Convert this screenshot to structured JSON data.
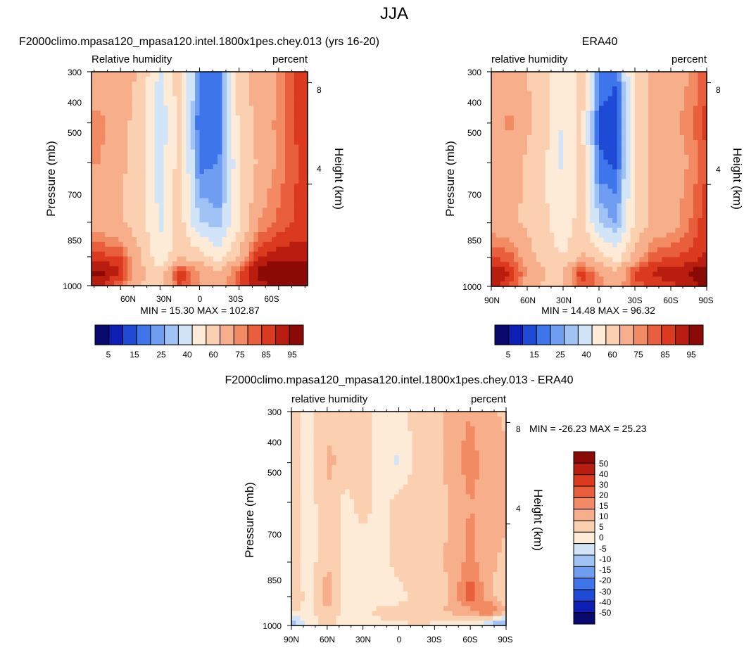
{
  "figure": {
    "title": "JJA",
    "colors": {
      "full_scale": [
        "#08086e",
        "#0c1eb4",
        "#1f4ad6",
        "#3f75ea",
        "#6e9df2",
        "#a1c2f5",
        "#d2e4f8",
        "#fdebd7",
        "#fbd0b0",
        "#f7ae8a",
        "#f28a63",
        "#e95f3d",
        "#dc3a1e",
        "#b81d0f",
        "#8c0a05"
      ],
      "diff_scale": [
        "#08086e",
        "#0c1eb4",
        "#1f4ad6",
        "#3f75ea",
        "#6e9df2",
        "#a1c2f5",
        "#d2e4f8",
        "#fdebd7",
        "#fbd0b0",
        "#f7ae8a",
        "#f28a63",
        "#e95f3d",
        "#dc3a1e",
        "#b81d0f",
        "#8c0a05"
      ]
    }
  },
  "panels": [
    {
      "id": "model",
      "title": "F2000climo.mpasa120_mpasa120.intel.1800x1pes.chey.013 (yrs 16-20)",
      "left_label": "Relative humidity",
      "right_label": "percent",
      "stats": "MIN =  15.30  MAX = 102.87",
      "colorbar_labels": [
        "5",
        "15",
        "25",
        "40",
        "60",
        "75",
        "85",
        "95"
      ]
    },
    {
      "id": "obs",
      "title": "ERA40",
      "left_label": "relative humidity",
      "right_label": "percent",
      "stats": "MIN =  14.48  MAX =  96.32",
      "colorbar_labels": [
        "5",
        "15",
        "25",
        "40",
        "60",
        "75",
        "85",
        "95"
      ]
    },
    {
      "id": "diff",
      "title": "F2000climo.mpasa120_mpasa120.intel.1800x1pes.chey.013 - ERA40",
      "left_label": "relative humidity",
      "right_label": "percent",
      "stats": "MIN = -26.23  MAX =  25.23",
      "colorbar_labels": [
        "50",
        "40",
        "30",
        "20",
        "15",
        "10",
        "5",
        "0",
        "-5",
        "-10",
        "-15",
        "-20",
        "-30",
        "-40",
        "-50"
      ]
    }
  ],
  "axes": {
    "ylabel": "Pressure (mb)",
    "y2label": "Height (km)",
    "pressure_ticks": [
      "300",
      "400",
      "500",
      "700",
      "850",
      "1000"
    ],
    "height_ticks": [
      "8",
      "4"
    ],
    "lat_ticks_full": [
      "90N",
      "60N",
      "30N",
      "0",
      "30S",
      "60S",
      "90S"
    ],
    "lat_ticks_model": [
      "60N",
      "30N",
      "0",
      "30S",
      "60S"
    ]
  },
  "chart_data": [
    {
      "type": "heatmap",
      "title": "F2000climo.mpasa120_mpasa120.intel.1800x1pes.chey.013 (yrs 16-20)",
      "xlabel": "",
      "ylabel": "Pressure (mb)",
      "y2label": "Height (km)",
      "x": [
        -75,
        -60,
        -45,
        -30,
        -15,
        0,
        15,
        30,
        45,
        60,
        75
      ],
      "y": [
        300,
        400,
        500,
        700,
        850,
        925,
        1000
      ],
      "levels": [
        5,
        10,
        15,
        20,
        25,
        30,
        40,
        50,
        60,
        70,
        75,
        80,
        85,
        90,
        95
      ],
      "values": [
        [
          62,
          66,
          58,
          38,
          55,
          20,
          18,
          55,
          65,
          70,
          82
        ],
        [
          72,
          64,
          55,
          32,
          55,
          15,
          16,
          52,
          64,
          72,
          82
        ],
        [
          70,
          62,
          55,
          35,
          55,
          18,
          20,
          48,
          62,
          72,
          80
        ],
        [
          65,
          60,
          55,
          38,
          55,
          30,
          26,
          48,
          70,
          76,
          82
        ],
        [
          82,
          80,
          60,
          42,
          58,
          55,
          45,
          62,
          85,
          88,
          88
        ],
        [
          92,
          86,
          64,
          52,
          85,
          70,
          60,
          80,
          92,
          96,
          98
        ],
        [
          85,
          76,
          60,
          55,
          80,
          70,
          62,
          80,
          88,
          92,
          90
        ]
      ],
      "min": 15.3,
      "max": 102.87,
      "colorbar": [
        "5",
        "15",
        "25",
        "40",
        "60",
        "75",
        "85",
        "95"
      ]
    },
    {
      "type": "heatmap",
      "title": "ERA40",
      "xlabel": "",
      "ylabel": "Pressure (mb)",
      "y2label": "Height (km)",
      "x": [
        -90,
        -75,
        -60,
        -45,
        -30,
        -15,
        0,
        15,
        30,
        45,
        60,
        75,
        90
      ],
      "y": [
        300,
        400,
        500,
        700,
        850,
        925,
        1000
      ],
      "levels": [
        5,
        10,
        15,
        20,
        25,
        30,
        40,
        50,
        60,
        70,
        75,
        80,
        85,
        90,
        95
      ],
      "values": [
        [
          60,
          65,
          60,
          55,
          40,
          55,
          18,
          16,
          55,
          62,
          65,
          70,
          80
        ],
        [
          66,
          72,
          62,
          55,
          38,
          55,
          14,
          12,
          52,
          64,
          68,
          72,
          82
        ],
        [
          62,
          66,
          58,
          50,
          38,
          55,
          16,
          14,
          52,
          62,
          66,
          70,
          80
        ],
        [
          65,
          62,
          58,
          52,
          42,
          55,
          30,
          24,
          52,
          62,
          66,
          74,
          84
        ],
        [
          80,
          78,
          64,
          56,
          50,
          62,
          55,
          45,
          64,
          78,
          80,
          82,
          86
        ],
        [
          88,
          86,
          70,
          60,
          60,
          84,
          70,
          62,
          82,
          86,
          88,
          90,
          95
        ],
        [
          90,
          80,
          66,
          58,
          58,
          80,
          72,
          66,
          78,
          80,
          84,
          86,
          92
        ]
      ],
      "min": 14.48,
      "max": 96.32,
      "colorbar": [
        "5",
        "15",
        "25",
        "40",
        "60",
        "75",
        "85",
        "95"
      ]
    },
    {
      "type": "heatmap",
      "title": "F2000climo.mpasa120_mpasa120.intel.1800x1pes.chey.013 - ERA40",
      "xlabel": "",
      "ylabel": "Pressure (mb)",
      "y2label": "Height (km)",
      "x": [
        -90,
        -75,
        -60,
        -45,
        -30,
        -15,
        0,
        15,
        30,
        45,
        60,
        75,
        90
      ],
      "y": [
        300,
        400,
        500,
        700,
        850,
        925,
        1000
      ],
      "levels": [
        -50,
        -40,
        -30,
        -20,
        -15,
        -10,
        -5,
        0,
        5,
        10,
        15,
        20,
        30,
        40,
        50
      ],
      "values": [
        [
          2,
          -2,
          4,
          2,
          2,
          -2,
          -2,
          2,
          2,
          8,
          10,
          6,
          4
        ],
        [
          2,
          -2,
          6,
          4,
          2,
          -2,
          -6,
          2,
          2,
          8,
          12,
          8,
          6
        ],
        [
          2,
          -3,
          5,
          -2,
          2,
          -2,
          2,
          2,
          2,
          6,
          10,
          8,
          6
        ],
        [
          2,
          -3,
          5,
          -2,
          -3,
          -2,
          2,
          2,
          4,
          6,
          12,
          6,
          4
        ],
        [
          4,
          -2,
          8,
          -3,
          -5,
          -3,
          -2,
          2,
          2,
          6,
          20,
          6,
          2
        ],
        [
          2,
          -2,
          4,
          -2,
          -2,
          2,
          2,
          2,
          4,
          6,
          8,
          18,
          4
        ],
        [
          -18,
          -2,
          2,
          -2,
          -2,
          -2,
          -2,
          2,
          -2,
          -2,
          -4,
          -12,
          -20
        ]
      ],
      "min": -26.23,
      "max": 25.23,
      "colorbar": [
        "50",
        "40",
        "30",
        "20",
        "15",
        "10",
        "5",
        "0",
        "-5",
        "-10",
        "-15",
        "-20",
        "-30",
        "-40",
        "-50"
      ]
    }
  ]
}
